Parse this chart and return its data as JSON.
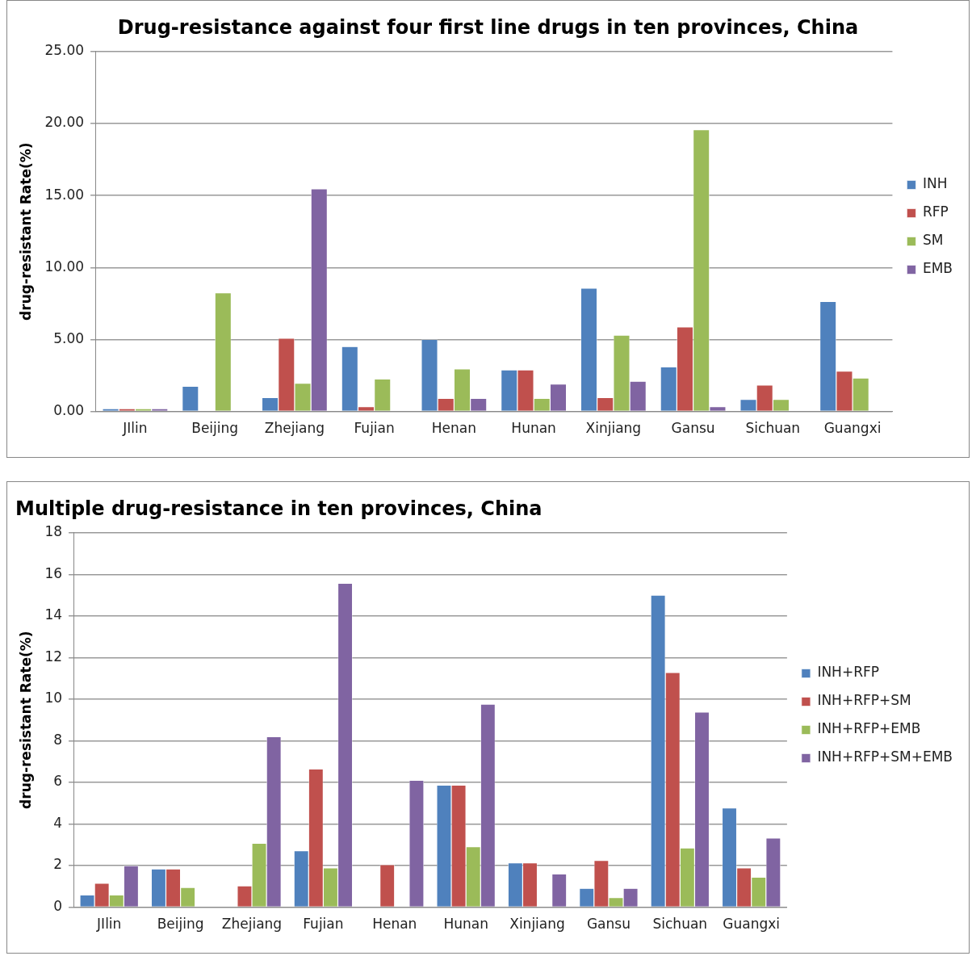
{
  "chart_data": [
    {
      "type": "bar",
      "title": "Drug-resistance against four first line drugs in ten provinces, China",
      "ylabel": "drug-resistant Rate(%)",
      "categories": [
        "JIlin",
        "Beijing",
        "Zhejiang",
        "Fujian",
        "Henan",
        "Hunan",
        "Xinjiang",
        "Gansu",
        "Sichuan",
        "Guangxi"
      ],
      "series": [
        {
          "name": "INH",
          "color": "#4f81bd",
          "values": [
            0.2,
            1.75,
            0.97,
            4.51,
            5.0,
            2.89,
            8.56,
            3.1,
            0.84,
            7.64
          ]
        },
        {
          "name": "RFP",
          "color": "#c0504d",
          "values": [
            0.2,
            0,
            5.08,
            0.34,
            0.91,
            2.89,
            0.97,
            5.87,
            1.84,
            2.8
          ]
        },
        {
          "name": "SM",
          "color": "#9bbb59",
          "values": [
            0.2,
            8.24,
            1.96,
            2.26,
            2.95,
            0.91,
            5.3,
            19.57,
            0.84,
            2.32
          ]
        },
        {
          "name": "EMB",
          "color": "#8064a2",
          "values": [
            0.2,
            0,
            15.46,
            0,
            0.91,
            1.9,
            2.1,
            0.34,
            0,
            0
          ]
        }
      ],
      "ylim": [
        0,
        25
      ],
      "yticks": [
        {
          "value": 0,
          "label": "0.00"
        },
        {
          "value": 5,
          "label": "5.00"
        },
        {
          "value": 10,
          "label": "10.00"
        },
        {
          "value": 15,
          "label": "15.00"
        },
        {
          "value": 20,
          "label": "20.00"
        },
        {
          "value": 25,
          "label": "25.00"
        }
      ],
      "grid": "y",
      "legend": "right"
    },
    {
      "type": "bar",
      "title": "Multiple drug-resistance in ten provinces, China",
      "ylabel": "drug-resistant Rate(%)",
      "categories": [
        "JIlin",
        "Beijing",
        "Zhejiang",
        "Fujian",
        "Henan",
        "Hunan",
        "Xinjiang",
        "Gansu",
        "Sichuan",
        "Guangxi"
      ],
      "series": [
        {
          "name": "INH+RFP",
          "color": "#4f81bd",
          "values": [
            0.59,
            1.84,
            0,
            2.71,
            0,
            5.87,
            2.13,
            0.91,
            15.0,
            4.77
          ]
        },
        {
          "name": "INH+RFP+SM",
          "color": "#c0504d",
          "values": [
            1.15,
            1.84,
            1.03,
            6.64,
            2.05,
            5.87,
            2.13,
            2.25,
            11.28,
            1.89
          ]
        },
        {
          "name": "INH+RFP+EMB",
          "color": "#9bbb59",
          "values": [
            0.59,
            0.95,
            3.07,
            1.89,
            0,
            2.91,
            0,
            0.46,
            2.85,
            1.44
          ]
        },
        {
          "name": "INH+RFP+SM+EMB",
          "color": "#8064a2",
          "values": [
            2.0,
            0,
            8.2,
            15.57,
            6.1,
            9.76,
            1.6,
            0.91,
            9.38,
            3.33
          ]
        }
      ],
      "ylim": [
        0,
        18
      ],
      "yticks": [
        0,
        2,
        4,
        6,
        8,
        10,
        12,
        14,
        16,
        18
      ],
      "grid": "y",
      "legend": "right"
    }
  ]
}
